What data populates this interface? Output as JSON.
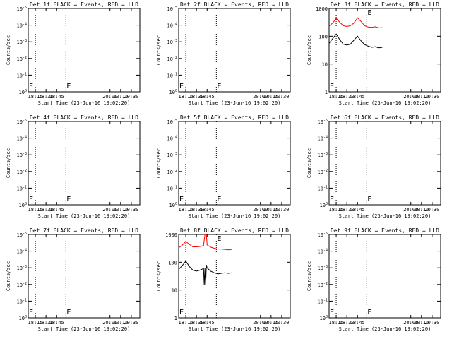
{
  "page": {
    "start_label": "Start Time (23-Jun-16 19:02:20)"
  },
  "chart_data": [
    {
      "type": "line",
      "title": "Det 1f BLACK = Events, RED = LLD",
      "ylabel": "Counts/sec",
      "xlabel": "Start Time (23-Jun-16 19:02:20)",
      "xlim": [
        "18:05",
        "20:42"
      ],
      "x_ticks": [
        "18:15",
        "18:30",
        "18:45",
        "20:00",
        "20:15",
        "20:30"
      ],
      "ylog": true,
      "y_ticks": [
        "10^0",
        "10^-1",
        "10^-2",
        "10^-3",
        "10^-4",
        "10^-5"
      ],
      "vlines": [
        "18:15",
        "18:58"
      ],
      "marker": "E",
      "series": []
    },
    {
      "type": "line",
      "title": "Det 2f BLACK = Events, RED = LLD",
      "ylabel": "Counts/sec",
      "xlabel": "Start Time (23-Jun-16 19:02:20)",
      "xlim": [
        "18:05",
        "20:42"
      ],
      "x_ticks": [
        "18:15",
        "18:30",
        "18:45",
        "20:00",
        "20:15",
        "20:30"
      ],
      "ylog": true,
      "y_ticks": [
        "10^0",
        "10^-1",
        "10^-2",
        "10^-3",
        "10^-4",
        "10^-5"
      ],
      "vlines": [
        "18:15",
        "18:58"
      ],
      "marker": "E",
      "series": []
    },
    {
      "type": "line",
      "title": "Det 3f BLACK = Events, RED = LLD",
      "ylabel": "Counts/sec",
      "xlabel": "Start Time (23-Jun-16 19:02:20)",
      "xlim": [
        "18:05",
        "20:42"
      ],
      "x_ticks": [
        "18:15",
        "18:30",
        "18:45",
        "20:00",
        "20:15",
        "20:30"
      ],
      "ylog": true,
      "y_ticks": [
        "1",
        "10",
        "100",
        "1000"
      ],
      "vlines": [
        "18:15",
        "18:58"
      ],
      "marker": "E",
      "series": [
        {
          "color": "#ff0000",
          "values": [
            [
              "18:05",
              230
            ],
            [
              "18:10",
              300
            ],
            [
              "18:15",
              440
            ],
            [
              "18:20",
              320
            ],
            [
              "18:25",
              240
            ],
            [
              "18:30",
              225
            ],
            [
              "18:35",
              240
            ],
            [
              "18:40",
              300
            ],
            [
              "18:45",
              460
            ],
            [
              "18:50",
              340
            ],
            [
              "18:55",
              240
            ],
            [
              "19:00",
              215
            ],
            [
              "19:05",
              210
            ],
            [
              "19:10",
              220
            ],
            [
              "19:15",
              200
            ],
            [
              "19:20",
              205
            ]
          ]
        },
        {
          "color": "#000000",
          "values": [
            [
              "18:05",
              55
            ],
            [
              "18:10",
              82
            ],
            [
              "18:15",
              120
            ],
            [
              "18:20",
              75
            ],
            [
              "18:25",
              52
            ],
            [
              "18:30",
              48
            ],
            [
              "18:35",
              52
            ],
            [
              "18:40",
              72
            ],
            [
              "18:45",
              100
            ],
            [
              "18:50",
              68
            ],
            [
              "18:55",
              50
            ],
            [
              "19:00",
              44
            ],
            [
              "19:05",
              40
            ],
            [
              "19:10",
              42
            ],
            [
              "19:15",
              38
            ],
            [
              "19:20",
              40
            ]
          ]
        }
      ]
    },
    {
      "type": "line",
      "title": "Det 4f BLACK = Events, RED = LLD",
      "ylabel": "Counts/sec",
      "xlabel": "Start Time (23-Jun-16 19:02:20)",
      "xlim": [
        "18:05",
        "20:42"
      ],
      "x_ticks": [
        "18:15",
        "18:30",
        "18:45",
        "20:00",
        "20:15",
        "20:30"
      ],
      "ylog": true,
      "y_ticks": [
        "10^0",
        "10^-1",
        "10^-2",
        "10^-3",
        "10^-4",
        "10^-5"
      ],
      "vlines": [
        "18:15",
        "18:58"
      ],
      "marker": "E",
      "series": []
    },
    {
      "type": "line",
      "title": "Det 5f BLACK = Events, RED = LLD",
      "ylabel": "Counts/sec",
      "xlabel": "Start Time (23-Jun-16 19:02:20)",
      "xlim": [
        "18:05",
        "20:42"
      ],
      "x_ticks": [
        "18:15",
        "18:30",
        "18:45",
        "20:00",
        "20:15",
        "20:30"
      ],
      "ylog": true,
      "y_ticks": [
        "10^0",
        "10^-1",
        "10^-2",
        "10^-3",
        "10^-4",
        "10^-5"
      ],
      "vlines": [
        "18:15",
        "18:58"
      ],
      "marker": "E",
      "series": []
    },
    {
      "type": "line",
      "title": "Det 6f BLACK = Events, RED = LLD",
      "ylabel": "Counts/sec",
      "xlabel": "Start Time (23-Jun-16 19:02:20)",
      "xlim": [
        "18:05",
        "20:42"
      ],
      "x_ticks": [
        "18:15",
        "18:30",
        "18:45",
        "20:00",
        "20:15",
        "20:30"
      ],
      "ylog": true,
      "y_ticks": [
        "10^0",
        "10^-1",
        "10^-2",
        "10^-3",
        "10^-4",
        "10^-5"
      ],
      "vlines": [
        "18:15",
        "18:58"
      ],
      "marker": "E",
      "series": []
    },
    {
      "type": "line",
      "title": "Det 7f BLACK = Events, RED = LLD",
      "ylabel": "Counts/sec",
      "xlabel": "Start Time (23-Jun-16 19:02:20)",
      "xlim": [
        "18:05",
        "20:42"
      ],
      "x_ticks": [
        "18:15",
        "18:30",
        "18:45",
        "20:00",
        "20:15",
        "20:30"
      ],
      "ylog": true,
      "y_ticks": [
        "10^0",
        "10^-1",
        "10^-2",
        "10^-3",
        "10^-4",
        "10^-5"
      ],
      "vlines": [
        "18:15",
        "18:58"
      ],
      "marker": "E",
      "series": []
    },
    {
      "type": "line",
      "title": "Det 8f BLACK = Events, RED = LLD",
      "ylabel": "Counts/sec",
      "xlabel": "Start Time (23-Jun-16 19:02:20)",
      "xlim": [
        "18:05",
        "20:42"
      ],
      "x_ticks": [
        "18:15",
        "18:30",
        "18:45",
        "20:00",
        "20:15",
        "20:30"
      ],
      "ylog": true,
      "y_ticks": [
        "1",
        "10",
        "100",
        "1000"
      ],
      "vlines": [
        "18:15",
        "18:58"
      ],
      "marker": "E",
      "series": [
        {
          "color": "#ff0000",
          "values": [
            [
              "18:05",
              330
            ],
            [
              "18:10",
              410
            ],
            [
              "18:15",
              560
            ],
            [
              "18:20",
              440
            ],
            [
              "18:25",
              360
            ],
            [
              "18:30",
              360
            ],
            [
              "18:35",
              370
            ],
            [
              "18:40",
              400
            ],
            [
              "18:42",
              1000
            ],
            [
              "18:44",
              1000
            ],
            [
              "18:45",
              420
            ],
            [
              "18:50",
              350
            ],
            [
              "18:55",
              320
            ],
            [
              "19:00",
              300
            ],
            [
              "19:05",
              300
            ],
            [
              "19:10",
              290
            ],
            [
              "19:15",
              280
            ],
            [
              "19:20",
              290
            ]
          ]
        },
        {
          "color": "#000000",
          "values": [
            [
              "18:05",
              55
            ],
            [
              "18:10",
              75
            ],
            [
              "18:15",
              110
            ],
            [
              "18:20",
              70
            ],
            [
              "18:25",
              52
            ],
            [
              "18:30",
              48
            ],
            [
              "18:35",
              52
            ],
            [
              "18:40",
              60
            ],
            [
              "18:41",
              15
            ],
            [
              "18:42",
              62
            ],
            [
              "18:43",
              15
            ],
            [
              "18:44",
              80
            ],
            [
              "18:45",
              62
            ],
            [
              "18:50",
              48
            ],
            [
              "18:55",
              42
            ],
            [
              "19:00",
              38
            ],
            [
              "19:05",
              40
            ],
            [
              "19:10",
              42
            ],
            [
              "19:15",
              40
            ],
            [
              "19:20",
              42
            ]
          ]
        }
      ]
    },
    {
      "type": "line",
      "title": "Det 9f BLACK = Events, RED = LLD",
      "ylabel": "Counts/sec",
      "xlabel": "Start Time (23-Jun-16 19:02:20)",
      "xlim": [
        "18:05",
        "20:42"
      ],
      "x_ticks": [
        "18:15",
        "18:30",
        "18:45",
        "20:00",
        "20:15",
        "20:30"
      ],
      "ylog": true,
      "y_ticks": [
        "10^0",
        "10^-1",
        "10^-2",
        "10^-3",
        "10^-4",
        "10^-5"
      ],
      "vlines": [
        "18:15",
        "18:58"
      ],
      "marker": "E",
      "series": []
    }
  ]
}
